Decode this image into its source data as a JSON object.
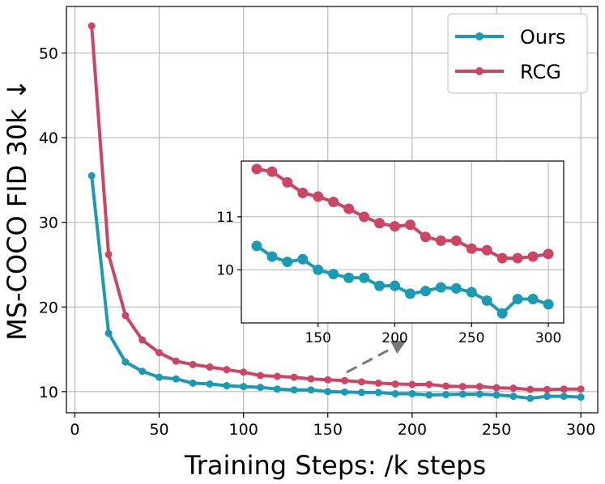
{
  "chart_data": {
    "type": "line",
    "xlabel": "Training Steps: /k steps",
    "ylabel": "MS-COCO FID 30k ↓",
    "xlim": [
      -5,
      310
    ],
    "ylim": [
      7.5,
      55.5
    ],
    "xticks": [
      0,
      50,
      100,
      150,
      200,
      250,
      300
    ],
    "yticks": [
      10,
      20,
      30,
      40,
      50
    ],
    "grid": true,
    "legend_position": "top-right",
    "series": [
      {
        "name": "Ours",
        "color": "#1a9bb3",
        "x": [
          10,
          20,
          30,
          40,
          50,
          60,
          70,
          80,
          90,
          100,
          110,
          120,
          130,
          140,
          150,
          160,
          170,
          180,
          190,
          200,
          210,
          220,
          230,
          240,
          250,
          260,
          270,
          280,
          290,
          300
        ],
        "y": [
          35.5,
          16.9,
          13.5,
          12.4,
          11.7,
          11.5,
          11.0,
          10.9,
          10.7,
          10.6,
          10.5,
          10.3,
          10.2,
          10.2,
          10.0,
          9.95,
          9.9,
          9.9,
          9.75,
          9.75,
          9.6,
          9.65,
          9.7,
          9.7,
          9.6,
          9.45,
          9.2,
          9.45,
          9.45,
          9.35
        ]
      },
      {
        "name": "RCG",
        "color": "#cc4565",
        "x": [
          10,
          20,
          30,
          40,
          50,
          60,
          70,
          80,
          90,
          100,
          110,
          120,
          130,
          140,
          150,
          160,
          170,
          180,
          190,
          200,
          210,
          220,
          230,
          240,
          250,
          260,
          270,
          280,
          290,
          300
        ],
        "y": [
          53.2,
          26.2,
          19.0,
          16.1,
          14.6,
          13.6,
          13.2,
          12.9,
          12.6,
          12.3,
          11.9,
          11.8,
          11.7,
          11.5,
          11.4,
          11.3,
          11.15,
          11.0,
          10.9,
          10.85,
          10.85,
          10.65,
          10.6,
          10.6,
          10.45,
          10.4,
          10.25,
          10.25,
          10.3,
          10.3
        ]
      }
    ],
    "inset": {
      "xlim": [
        100,
        310
      ],
      "ylim": [
        9.0,
        12.05
      ],
      "xticks": [
        150,
        200,
        250,
        300
      ],
      "yticks": [
        10,
        11
      ],
      "ytick_labels": [
        "10",
        "11"
      ],
      "series": [
        {
          "name": "Ours",
          "color": "#1a9bb3",
          "x": [
            110,
            120,
            130,
            140,
            150,
            160,
            170,
            180,
            190,
            200,
            210,
            220,
            230,
            240,
            250,
            260,
            270,
            280,
            290,
            300
          ],
          "y": [
            10.45,
            10.25,
            10.15,
            10.2,
            10.0,
            9.92,
            9.85,
            9.85,
            9.7,
            9.7,
            9.55,
            9.6,
            9.67,
            9.65,
            9.58,
            9.42,
            9.18,
            9.45,
            9.45,
            9.35
          ]
        },
        {
          "name": "RCG",
          "color": "#cc4565",
          "x": [
            110,
            120,
            130,
            140,
            150,
            160,
            170,
            180,
            190,
            200,
            210,
            220,
            230,
            240,
            250,
            260,
            270,
            280,
            290,
            300
          ],
          "y": [
            11.9,
            11.85,
            11.65,
            11.45,
            11.38,
            11.28,
            11.15,
            11.0,
            10.88,
            10.82,
            10.85,
            10.62,
            10.55,
            10.55,
            10.4,
            10.37,
            10.22,
            10.22,
            10.25,
            10.3
          ]
        }
      ]
    }
  }
}
